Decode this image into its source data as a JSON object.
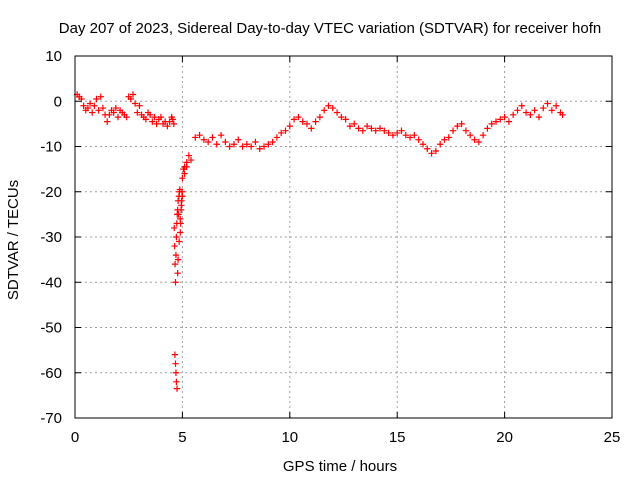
{
  "chart_data": {
    "type": "scatter",
    "title": "Day 207 of 2023, Sidereal Day-to-day VTEC variation (SDTVAR) for receiver hofn",
    "xlabel": "GPS time / hours",
    "ylabel": "SDTVAR / TECUs",
    "xlim": [
      0,
      25
    ],
    "ylim": [
      -70,
      10
    ],
    "x_ticks": [
      0,
      5,
      10,
      15,
      20,
      25
    ],
    "y_ticks": [
      10,
      0,
      -10,
      -20,
      -30,
      -40,
      -50,
      -60,
      -70
    ],
    "x_tick_labels": [
      "0",
      "5",
      "10",
      "15",
      "20",
      "25"
    ],
    "y_tick_labels": [
      "10",
      "0",
      "-10",
      "-20",
      "-30",
      "-40",
      "-50",
      "-60",
      "-70"
    ],
    "grid": true,
    "marker": "plus",
    "color": "#ff0000",
    "series": [
      {
        "name": "hofn",
        "x": [
          0.1,
          0.2,
          0.3,
          0.4,
          0.5,
          0.6,
          0.7,
          0.8,
          0.9,
          1.0,
          1.1,
          1.2,
          1.3,
          1.4,
          1.5,
          1.6,
          1.7,
          1.8,
          1.9,
          2.0,
          2.1,
          2.2,
          2.3,
          2.4,
          2.5,
          2.6,
          2.7,
          2.8,
          2.9,
          3.0,
          3.1,
          3.2,
          3.3,
          3.4,
          3.5,
          3.6,
          3.7,
          3.8,
          3.9,
          4.0,
          4.1,
          4.2,
          4.3,
          4.4,
          4.5,
          4.55,
          4.6,
          4.62,
          4.64,
          4.66,
          4.68,
          4.7,
          4.72,
          4.74,
          4.76,
          4.78,
          4.8,
          4.82,
          4.84,
          4.86,
          4.88,
          4.9,
          4.92,
          4.94,
          4.96,
          4.98,
          5.0,
          5.05,
          5.1,
          5.2,
          5.3,
          5.4,
          5.6,
          5.8,
          6.0,
          6.2,
          6.4,
          6.6,
          6.8,
          7.0,
          7.2,
          7.4,
          7.6,
          7.8,
          8.0,
          8.2,
          8.4,
          8.6,
          8.8,
          9.0,
          9.2,
          9.4,
          9.6,
          9.8,
          10.0,
          10.2,
          10.4,
          10.6,
          10.8,
          11.0,
          11.2,
          11.4,
          11.6,
          11.8,
          12.0,
          12.2,
          12.4,
          12.6,
          12.8,
          13.0,
          13.2,
          13.4,
          13.6,
          13.8,
          14.0,
          14.2,
          14.4,
          14.6,
          14.8,
          15.0,
          15.2,
          15.4,
          15.6,
          15.8,
          16.0,
          16.2,
          16.4,
          16.6,
          16.8,
          17.0,
          17.2,
          17.4,
          17.6,
          17.8,
          18.0,
          18.2,
          18.4,
          18.6,
          18.8,
          19.0,
          19.2,
          19.4,
          19.6,
          19.8,
          20.0,
          20.2,
          20.4,
          20.6,
          20.8,
          21.0,
          21.2,
          21.4,
          21.6,
          21.8,
          22.0,
          22.2,
          22.4,
          22.6,
          22.7,
          4.65,
          4.68,
          4.7,
          4.72,
          4.75,
          4.78,
          4.8,
          4.85,
          4.9,
          4.95,
          5.0,
          5.1,
          5.2
        ],
        "y": [
          1.5,
          1.0,
          0.5,
          -1.0,
          -2.0,
          -1.5,
          -0.5,
          -2.5,
          -1.0,
          0.5,
          -2.0,
          1.0,
          -1.5,
          -3.0,
          -4.5,
          -3.0,
          -2.0,
          -2.5,
          -1.5,
          -3.5,
          -2.0,
          -2.5,
          -3.0,
          -3.5,
          1.0,
          0.5,
          1.5,
          -0.5,
          -2.5,
          -1.0,
          -3.0,
          -3.5,
          -4.0,
          -2.5,
          -3.0,
          -4.5,
          -3.5,
          -5.0,
          -4.0,
          -3.5,
          -5.0,
          -4.5,
          -5.5,
          -4.5,
          -3.5,
          -4.0,
          -5.0,
          -28.0,
          -32.0,
          -36.0,
          -40.0,
          -34.0,
          -30.0,
          -27.0,
          -25.0,
          -24.0,
          -22.0,
          -25.0,
          -21.0,
          -20.0,
          -19.5,
          -29.0,
          -27.0,
          -24.0,
          -22.0,
          -20.0,
          -17.0,
          -15.0,
          -14.5,
          -13.5,
          -12.0,
          -13.0,
          -8.0,
          -7.5,
          -8.5,
          -9.0,
          -8.0,
          -9.5,
          -7.5,
          -9.0,
          -10.0,
          -9.5,
          -8.5,
          -10.0,
          -9.5,
          -10.0,
          -9.0,
          -10.5,
          -10.0,
          -9.5,
          -9.0,
          -8.0,
          -7.0,
          -6.5,
          -5.5,
          -4.0,
          -3.5,
          -4.5,
          -5.0,
          -6.0,
          -4.5,
          -3.5,
          -2.0,
          -1.0,
          -1.5,
          -2.5,
          -3.5,
          -4.0,
          -5.5,
          -5.0,
          -6.0,
          -6.5,
          -5.5,
          -6.0,
          -6.5,
          -6.0,
          -6.5,
          -7.0,
          -7.5,
          -7.0,
          -6.5,
          -7.5,
          -8.0,
          -7.5,
          -8.5,
          -9.5,
          -10.5,
          -11.5,
          -11.0,
          -9.5,
          -8.5,
          -8.0,
          -6.5,
          -5.5,
          -5.0,
          -6.5,
          -7.5,
          -8.5,
          -9.0,
          -7.5,
          -6.0,
          -5.0,
          -4.5,
          -4.0,
          -3.5,
          -4.5,
          -3.0,
          -2.0,
          -1.0,
          -2.5,
          -3.0,
          -2.0,
          -3.5,
          -1.5,
          -0.5,
          -2.0,
          -1.0,
          -2.5,
          -3.0,
          -56.0,
          -58.0,
          -60.0,
          -62.0,
          -63.5,
          -38.0,
          -35.0,
          -31.0,
          -26.0,
          -23.0,
          -21.0,
          -16.0,
          -14.5
        ]
      }
    ]
  }
}
